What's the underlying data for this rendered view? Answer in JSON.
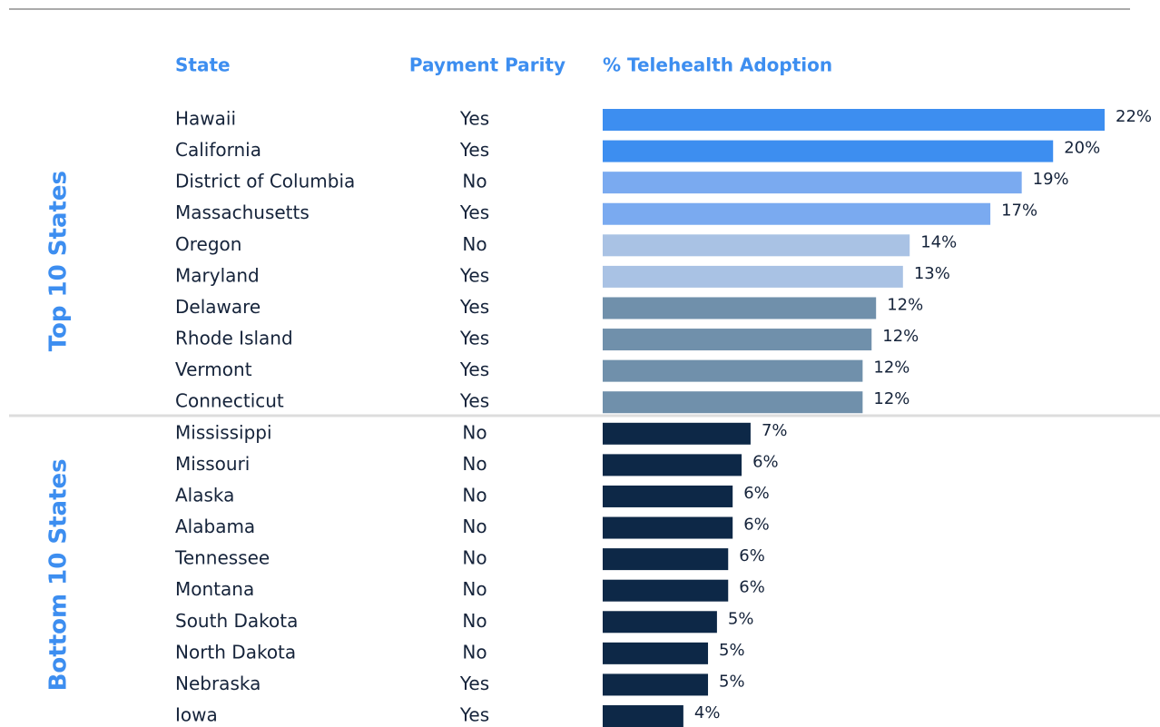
{
  "chart_data": {
    "type": "bar",
    "columns": [
      "State",
      "Payment Parity",
      "% Telehealth Adoption"
    ],
    "groups": [
      {
        "name": "Top 10 States",
        "categories": [
          "Hawaii",
          "California",
          "District of Columbia",
          "Massachusetts",
          "Oregon",
          "Maryland",
          "Delaware",
          "Rhode Island",
          "Vermont",
          "Connecticut"
        ],
        "parity": [
          "Yes",
          "Yes",
          "No",
          "Yes",
          "No",
          "Yes",
          "Yes",
          "Yes",
          "Yes",
          "Yes"
        ],
        "values": [
          22.4,
          20.1,
          18.7,
          17.3,
          13.7,
          13.4,
          12.2,
          12.0,
          11.6,
          11.6
        ],
        "value_labels": [
          "22%",
          "20%",
          "19%",
          "17%",
          "14%",
          "13%",
          "12%",
          "12%",
          "12%",
          "12%"
        ],
        "colors": [
          "#3d8ef0",
          "#3d8ef0",
          "#7aaaf0",
          "#7aaaf0",
          "#a9c2e4",
          "#a9c2e4",
          "#7090ab",
          "#7090ab",
          "#7090ab",
          "#7090ab"
        ]
      },
      {
        "name": "Bottom 10 States",
        "categories": [
          "Mississippi",
          "Missouri",
          "Alaska",
          "Alabama",
          "Tennessee",
          "Montana",
          "South Dakota",
          "North Dakota",
          "Nebraska",
          "Iowa"
        ],
        "parity": [
          "No",
          "No",
          "No",
          "No",
          "No",
          "No",
          "No",
          "No",
          "Yes",
          "Yes"
        ],
        "values": [
          6.6,
          6.2,
          5.8,
          5.8,
          5.6,
          5.6,
          5.1,
          4.7,
          4.7,
          3.6
        ],
        "value_labels": [
          "7%",
          "6%",
          "6%",
          "6%",
          "6%",
          "6%",
          "5%",
          "5%",
          "5%",
          "4%"
        ],
        "colors": [
          "#0d2847",
          "#0d2847",
          "#0d2847",
          "#0d2847",
          "#0d2847",
          "#0d2847",
          "#0d2847",
          "#0d2847",
          "#0d2847",
          "#0d2847"
        ]
      }
    ]
  }
}
